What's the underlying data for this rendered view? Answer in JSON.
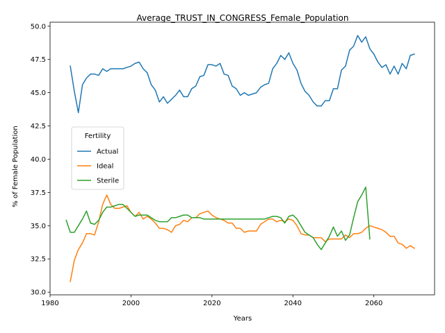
{
  "chart_data": {
    "type": "line",
    "title": "Average_TRUST_IN_CONGRESS_Female_Population",
    "xlabel": "Years",
    "ylabel": "% of Female Population",
    "xlim": [
      1980,
      2075
    ],
    "ylim": [
      29.8,
      50.3
    ],
    "xticks": [
      1980,
      2000,
      2020,
      2040,
      2060
    ],
    "xtick_labels": [
      "1980",
      "2000",
      "2020",
      "2040",
      "2060"
    ],
    "yticks": [
      30.0,
      32.5,
      35.0,
      37.5,
      40.0,
      42.5,
      45.0,
      47.5,
      50.0
    ],
    "ytick_labels": [
      "30.0",
      "32.5",
      "35.0",
      "37.5",
      "40.0",
      "42.5",
      "45.0",
      "47.5",
      "50.0"
    ],
    "grid": false,
    "legend": {
      "title": "Fertility",
      "placement": "center-left"
    },
    "series": [
      {
        "name": "Actual",
        "color": "#1f77b4",
        "x": [
          1985,
          1986,
          1987,
          1988,
          1989,
          1990,
          1991,
          1992,
          1993,
          1994,
          1995,
          1996,
          1997,
          1998,
          1999,
          2000,
          2001,
          2002,
          2003,
          2004,
          2005,
          2006,
          2007,
          2008,
          2009,
          2010,
          2011,
          2012,
          2013,
          2014,
          2015,
          2016,
          2017,
          2018,
          2019,
          2020,
          2021,
          2022,
          2023,
          2024,
          2025,
          2026,
          2027,
          2028,
          2029,
          2030,
          2031,
          2032,
          2033,
          2034,
          2035,
          2036,
          2037,
          2038,
          2039,
          2040,
          2041,
          2042,
          2043,
          2044,
          2045,
          2046,
          2047,
          2048,
          2049,
          2050,
          2051,
          2052,
          2053,
          2054,
          2055,
          2056,
          2057,
          2058,
          2059,
          2060,
          2061,
          2062,
          2063,
          2064,
          2065,
          2066,
          2067,
          2068,
          2069,
          2070
        ],
        "values": [
          47.0,
          45.1,
          43.5,
          45.6,
          46.1,
          46.4,
          46.4,
          46.3,
          46.8,
          46.6,
          46.8,
          46.8,
          46.8,
          46.8,
          46.9,
          47.0,
          47.2,
          47.3,
          46.8,
          46.5,
          45.6,
          45.2,
          44.3,
          44.7,
          44.2,
          44.5,
          44.8,
          45.2,
          44.7,
          44.7,
          45.3,
          45.5,
          46.2,
          46.3,
          47.1,
          47.1,
          47.0,
          47.2,
          46.4,
          46.3,
          45.5,
          45.3,
          44.8,
          45.0,
          44.8,
          44.9,
          45.0,
          45.4,
          45.6,
          45.7,
          46.8,
          47.2,
          47.8,
          47.5,
          48.0,
          47.2,
          46.7,
          45.7,
          45.1,
          44.8,
          44.3,
          44.0,
          44.0,
          44.4,
          44.4,
          45.3,
          45.3,
          46.7,
          47.0,
          48.2,
          48.5,
          49.3,
          48.8,
          49.2,
          48.3,
          47.9,
          47.3,
          46.9,
          47.1,
          46.4,
          47.0,
          46.4,
          47.2,
          46.8,
          47.8,
          47.9
        ]
      },
      {
        "name": "Ideal",
        "color": "#ff7f0e",
        "x": [
          1985,
          1986,
          1987,
          1988,
          1989,
          1990,
          1991,
          1992,
          1993,
          1994,
          1995,
          1996,
          1997,
          1998,
          1999,
          2000,
          2001,
          2002,
          2003,
          2004,
          2005,
          2006,
          2007,
          2008,
          2009,
          2010,
          2011,
          2012,
          2013,
          2014,
          2015,
          2016,
          2017,
          2018,
          2019,
          2020,
          2021,
          2022,
          2023,
          2024,
          2025,
          2026,
          2027,
          2028,
          2029,
          2030,
          2031,
          2032,
          2033,
          2034,
          2035,
          2036,
          2037,
          2038,
          2039,
          2040,
          2041,
          2042,
          2043,
          2044,
          2045,
          2046,
          2047,
          2048,
          2049,
          2050,
          2051,
          2052,
          2053,
          2054,
          2055,
          2056,
          2057,
          2058,
          2059,
          2060,
          2061,
          2062,
          2063,
          2064,
          2065,
          2066,
          2067,
          2068,
          2069,
          2070
        ],
        "values": [
          30.8,
          32.4,
          33.2,
          33.7,
          34.4,
          34.4,
          34.3,
          35.3,
          36.6,
          37.3,
          36.6,
          36.3,
          36.3,
          36.4,
          36.5,
          36.0,
          35.7,
          36.0,
          35.5,
          35.7,
          35.5,
          35.2,
          34.8,
          34.8,
          34.7,
          34.5,
          35.0,
          35.1,
          35.4,
          35.3,
          35.6,
          35.6,
          35.9,
          36.0,
          36.1,
          35.8,
          35.6,
          35.5,
          35.4,
          35.2,
          35.2,
          34.8,
          34.8,
          34.5,
          34.6,
          34.6,
          34.6,
          35.1,
          35.3,
          35.5,
          35.5,
          35.3,
          35.4,
          35.3,
          35.5,
          35.4,
          35.0,
          34.4,
          34.3,
          34.3,
          34.1,
          34.1,
          34.1,
          33.8,
          34.0,
          34.0,
          34.0,
          34.0,
          34.3,
          34.1,
          34.4,
          34.4,
          34.5,
          34.8,
          35.0,
          34.9,
          34.8,
          34.7,
          34.5,
          34.2,
          34.2,
          33.7,
          33.6,
          33.3,
          33.5,
          33.3
        ]
      },
      {
        "name": "Sterile",
        "color": "#2ca02c",
        "x": [
          1984,
          1985,
          1986,
          1987,
          1988,
          1989,
          1990,
          1991,
          1992,
          1993,
          1994,
          1995,
          1996,
          1997,
          1998,
          1999,
          2000,
          2001,
          2002,
          2003,
          2004,
          2005,
          2006,
          2007,
          2008,
          2009,
          2010,
          2011,
          2012,
          2013,
          2014,
          2015,
          2016,
          2017,
          2018,
          2019,
          2020,
          2021,
          2022,
          2023,
          2024,
          2025,
          2026,
          2027,
          2028,
          2029,
          2030,
          2031,
          2032,
          2033,
          2034,
          2035,
          2036,
          2037,
          2038,
          2039,
          2040,
          2041,
          2042,
          2043,
          2044,
          2045,
          2046,
          2047,
          2048,
          2049,
          2050,
          2051,
          2052,
          2053,
          2054,
          2055,
          2056,
          2057,
          2058,
          2059
        ],
        "values": [
          35.4,
          34.5,
          34.5,
          35.0,
          35.5,
          36.1,
          35.2,
          35.1,
          35.4,
          36.0,
          36.4,
          36.4,
          36.5,
          36.6,
          36.6,
          36.3,
          36.0,
          35.7,
          35.8,
          35.8,
          35.8,
          35.6,
          35.4,
          35.3,
          35.3,
          35.3,
          35.6,
          35.6,
          35.7,
          35.8,
          35.8,
          35.6,
          35.6,
          35.6,
          35.5,
          35.5,
          35.5,
          35.5,
          35.5,
          35.5,
          35.5,
          35.5,
          35.5,
          35.5,
          35.5,
          35.5,
          35.5,
          35.5,
          35.5,
          35.5,
          35.6,
          35.7,
          35.7,
          35.6,
          35.2,
          35.7,
          35.8,
          35.5,
          35.0,
          34.5,
          34.3,
          34.1,
          33.6,
          33.2,
          33.7,
          34.2,
          34.9,
          34.2,
          34.6,
          33.9,
          34.3,
          35.6,
          36.8,
          37.3,
          37.9,
          34.0
        ]
      }
    ]
  }
}
